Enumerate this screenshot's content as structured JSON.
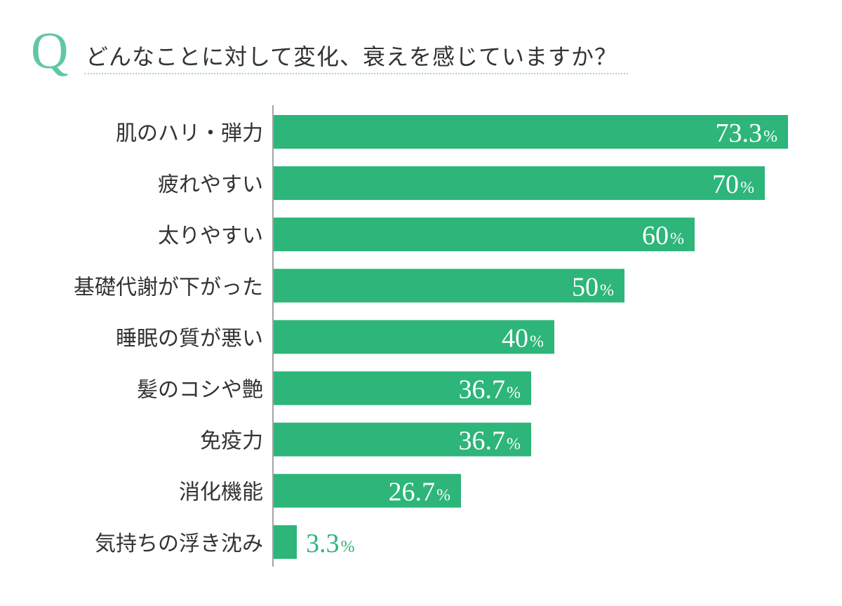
{
  "header": {
    "q_mark": "Q",
    "question": "どんなことに対して変化、衰えを感じていますか？"
  },
  "colors": {
    "accent": "#2db57a",
    "q_mark": "#5fc7a4",
    "text": "#333333",
    "axis": "#666666",
    "bar_label_inside": "#ffffff"
  },
  "chart_data": {
    "type": "bar",
    "orientation": "horizontal",
    "categories": [
      "肌のハリ・弾力",
      "疲れやすい",
      "太りやすい",
      "基礎代謝が下がった",
      "睡眠の質が悪い",
      "髪のコシや艶",
      "免疫力",
      "消化機能",
      "気持ちの浮き沈み"
    ],
    "values": [
      73.3,
      70,
      60,
      50,
      40,
      36.7,
      36.7,
      26.7,
      3.3
    ],
    "labels": [
      "73.3",
      "70",
      "60",
      "50",
      "40",
      "36.7",
      "36.7",
      "26.7",
      "3.3"
    ],
    "unit": "%",
    "xlim": [
      0,
      100
    ],
    "grid": false,
    "legend": "none"
  }
}
